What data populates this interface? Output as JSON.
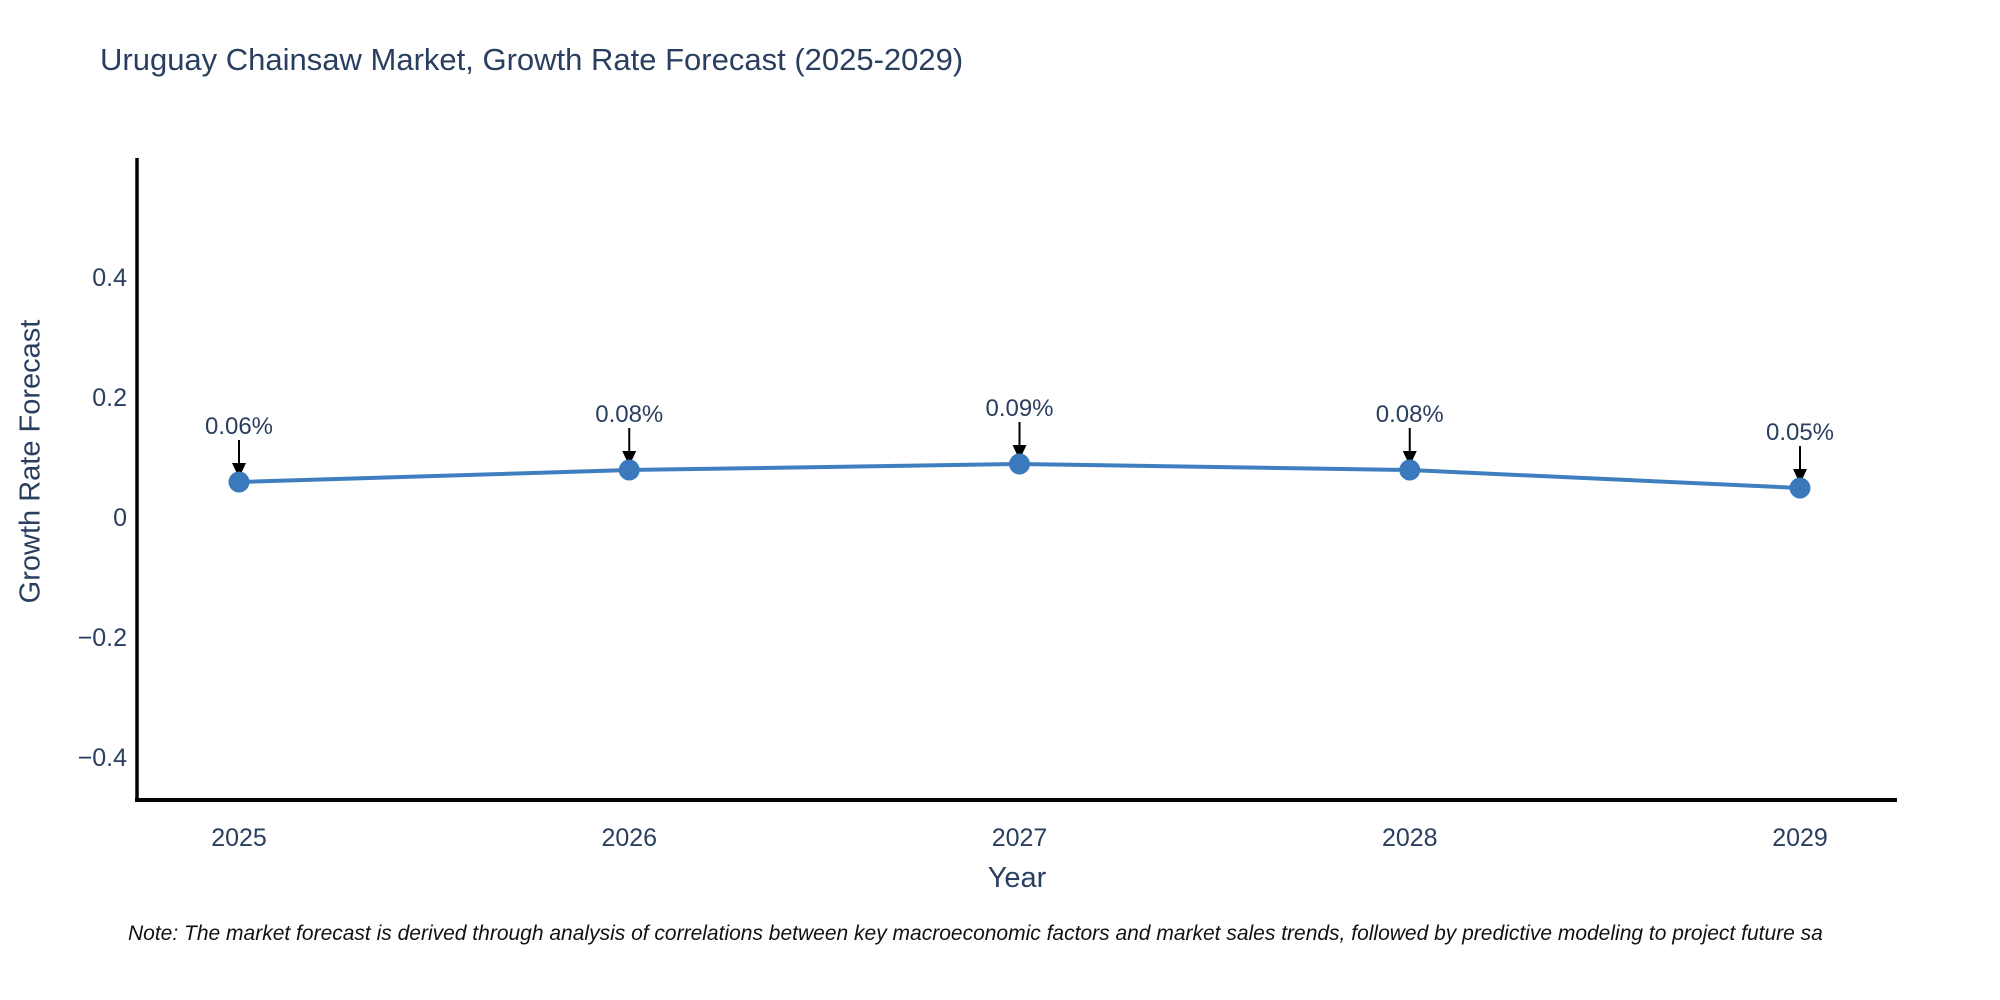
{
  "chart": {
    "title": "Uruguay Chainsaw Market, Growth Rate Forecast (2025-2029)",
    "xlabel": "Year",
    "ylabel": "Growth Rate Forecast"
  },
  "note": {
    "text": "Note: The market forecast is derived through analysis of correlations between key macroeconomic factors and market sales trends, followed by predictive modeling to project future sa"
  },
  "chart_data": {
    "type": "line",
    "title": "Uruguay Chainsaw Market, Growth Rate Forecast (2025-2029)",
    "xlabel": "Year",
    "ylabel": "Growth Rate Forecast",
    "x": [
      2025,
      2026,
      2027,
      2028,
      2029
    ],
    "x_tick_labels": [
      "2025",
      "2026",
      "2027",
      "2028",
      "2029"
    ],
    "y": [
      0.06,
      0.08,
      0.09,
      0.08,
      0.05
    ],
    "point_labels": [
      "0.06%",
      "0.08%",
      "0.09%",
      "0.08%",
      "0.05%"
    ],
    "yticks": [
      0.4,
      0.2,
      0,
      -0.2,
      -0.4
    ],
    "ytick_labels": [
      "0.4",
      "0.2",
      "0",
      "−0.2",
      "−0.4"
    ],
    "ylim": [
      -0.47,
      0.6
    ],
    "grid": false,
    "legend": false,
    "line_color": "#3f7fbf",
    "marker_color": "#3a7abc",
    "axis_color": "#000000",
    "text_color": "#2a3f5f",
    "annotation_arrow_color": "#000000"
  }
}
